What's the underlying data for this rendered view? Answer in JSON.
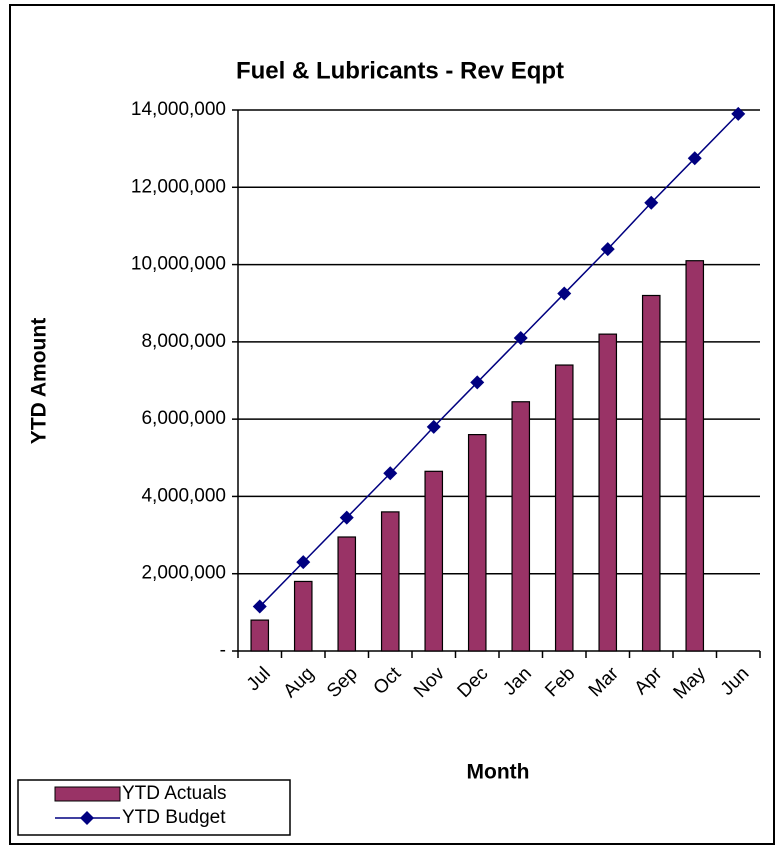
{
  "chart_data": {
    "type": "bar",
    "title": "Fuel & Lubricants - Rev Eqpt",
    "x_label": "Month",
    "y_label": "YTD Amount",
    "categories": [
      "Jul",
      "Aug",
      "Sep",
      "Oct",
      "Nov",
      "Dec",
      "Jan",
      "Feb",
      "Mar",
      "Apr",
      "May",
      "Jun"
    ],
    "series": [
      {
        "name": "YTD Actuals",
        "type": "bar",
        "color": "#993366",
        "values": [
          800000,
          1800000,
          2950000,
          3600000,
          4650000,
          5600000,
          6450000,
          7400000,
          8200000,
          9200000,
          10100000,
          null
        ]
      },
      {
        "name": "YTD Budget",
        "type": "line",
        "color": "#000080",
        "values": [
          1150000,
          2300000,
          3450000,
          4600000,
          5800000,
          6950000,
          8100000,
          9250000,
          10400000,
          11600000,
          12750000,
          13900000
        ]
      }
    ],
    "ylim": [
      0,
      14000000
    ],
    "yticks": [
      {
        "value": 0,
        "label": "-"
      },
      {
        "value": 2000000,
        "label": "2,000,000"
      },
      {
        "value": 4000000,
        "label": "4,000,000"
      },
      {
        "value": 6000000,
        "label": "6,000,000"
      },
      {
        "value": 8000000,
        "label": "8,000,000"
      },
      {
        "value": 10000000,
        "label": "10,000,000"
      },
      {
        "value": 12000000,
        "label": "12,000,000"
      },
      {
        "value": 14000000,
        "label": "14,000,000"
      }
    ],
    "grid": true,
    "legend": "lower left"
  }
}
